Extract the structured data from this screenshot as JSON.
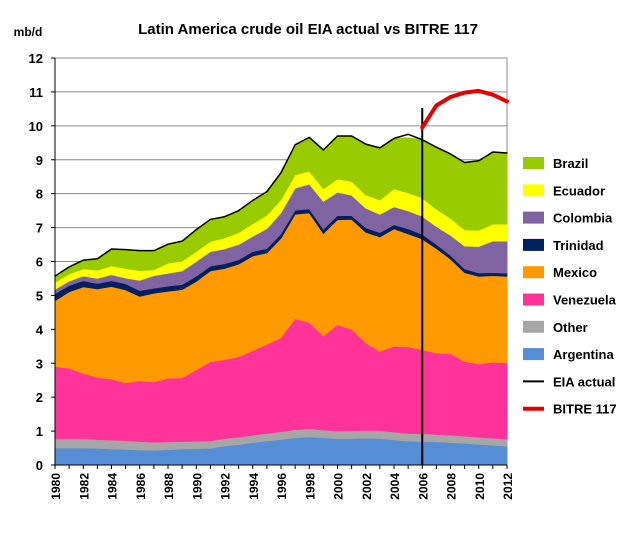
{
  "chart_data": {
    "type": "area",
    "title": "Latin America crude oil EIA actual vs BITRE 117",
    "ylabel": "mb/d",
    "xlabel": "",
    "ylim": [
      0,
      12
    ],
    "yticks": [
      0,
      1,
      2,
      3,
      4,
      5,
      6,
      7,
      8,
      9,
      10,
      11,
      12
    ],
    "xlim": [
      1980,
      2012
    ],
    "xticks": [
      1980,
      1982,
      1984,
      1986,
      1988,
      1990,
      1992,
      1994,
      1996,
      1998,
      2000,
      2002,
      2004,
      2006,
      2008,
      2010,
      2012
    ],
    "x": [
      1980,
      1981,
      1982,
      1983,
      1984,
      1985,
      1986,
      1987,
      1988,
      1989,
      1990,
      1991,
      1992,
      1993,
      1994,
      1995,
      1996,
      1997,
      1998,
      1999,
      2000,
      2001,
      2002,
      2003,
      2004,
      2005,
      2006,
      2007,
      2008,
      2009,
      2010,
      2011,
      2012
    ],
    "grid": true,
    "legend_position": "right",
    "stacked_series": [
      {
        "name": "Argentina",
        "color": "#558ED5",
        "values": [
          0.5,
          0.5,
          0.5,
          0.49,
          0.47,
          0.46,
          0.44,
          0.43,
          0.45,
          0.47,
          0.48,
          0.49,
          0.56,
          0.6,
          0.66,
          0.71,
          0.75,
          0.8,
          0.83,
          0.8,
          0.77,
          0.78,
          0.79,
          0.78,
          0.74,
          0.7,
          0.69,
          0.68,
          0.66,
          0.64,
          0.61,
          0.58,
          0.55
        ]
      },
      {
        "name": "Other",
        "color": "#A6A6A6",
        "values": [
          0.27,
          0.27,
          0.27,
          0.26,
          0.26,
          0.26,
          0.25,
          0.24,
          0.23,
          0.22,
          0.22,
          0.22,
          0.22,
          0.22,
          0.22,
          0.22,
          0.23,
          0.24,
          0.24,
          0.23,
          0.23,
          0.23,
          0.23,
          0.23,
          0.23,
          0.23,
          0.23,
          0.22,
          0.22,
          0.21,
          0.21,
          0.21,
          0.21
        ]
      },
      {
        "name": "Venezuela",
        "color": "#FF3399",
        "values": [
          2.13,
          2.08,
          1.93,
          1.83,
          1.8,
          1.7,
          1.79,
          1.78,
          1.87,
          1.88,
          2.1,
          2.33,
          2.32,
          2.37,
          2.49,
          2.62,
          2.77,
          3.27,
          3.13,
          2.77,
          3.13,
          2.99,
          2.58,
          2.34,
          2.53,
          2.55,
          2.48,
          2.4,
          2.4,
          2.2,
          2.16,
          2.24,
          2.25
        ]
      },
      {
        "name": "Mexico",
        "color": "#FF9900",
        "values": [
          1.94,
          2.25,
          2.55,
          2.61,
          2.73,
          2.74,
          2.49,
          2.61,
          2.57,
          2.6,
          2.61,
          2.68,
          2.69,
          2.73,
          2.79,
          2.7,
          2.93,
          3.08,
          3.23,
          3.02,
          3.1,
          3.24,
          3.26,
          3.37,
          3.46,
          3.33,
          3.26,
          3.08,
          2.79,
          2.62,
          2.58,
          2.55,
          2.55
        ]
      },
      {
        "name": "Trinidad",
        "color": "#002060",
        "values": [
          0.21,
          0.19,
          0.18,
          0.16,
          0.17,
          0.18,
          0.17,
          0.15,
          0.15,
          0.15,
          0.15,
          0.14,
          0.14,
          0.13,
          0.13,
          0.13,
          0.13,
          0.12,
          0.12,
          0.13,
          0.12,
          0.11,
          0.13,
          0.13,
          0.12,
          0.15,
          0.14,
          0.12,
          0.11,
          0.11,
          0.1,
          0.09,
          0.09
        ]
      },
      {
        "name": "Colombia",
        "color": "#8064A2",
        "values": [
          0.12,
          0.13,
          0.14,
          0.15,
          0.18,
          0.17,
          0.3,
          0.37,
          0.38,
          0.4,
          0.44,
          0.43,
          0.44,
          0.45,
          0.45,
          0.59,
          0.62,
          0.65,
          0.73,
          0.82,
          0.69,
          0.6,
          0.58,
          0.54,
          0.53,
          0.53,
          0.53,
          0.53,
          0.59,
          0.67,
          0.78,
          0.93,
          0.95
        ]
      },
      {
        "name": "Ecuador",
        "color": "#FFFF00",
        "values": [
          0.21,
          0.21,
          0.21,
          0.24,
          0.26,
          0.28,
          0.29,
          0.17,
          0.3,
          0.29,
          0.29,
          0.3,
          0.32,
          0.35,
          0.37,
          0.39,
          0.39,
          0.39,
          0.38,
          0.37,
          0.39,
          0.41,
          0.39,
          0.42,
          0.53,
          0.53,
          0.54,
          0.51,
          0.5,
          0.48,
          0.48,
          0.5,
          0.5
        ]
      },
      {
        "name": "Brazil",
        "color": "#99CC00",
        "values": [
          0.19,
          0.21,
          0.26,
          0.34,
          0.5,
          0.56,
          0.59,
          0.57,
          0.56,
          0.59,
          0.65,
          0.65,
          0.63,
          0.65,
          0.69,
          0.7,
          0.8,
          0.89,
          1.0,
          1.12,
          1.27,
          1.34,
          1.5,
          1.54,
          1.49,
          1.63,
          1.72,
          1.83,
          1.9,
          1.99,
          2.05,
          2.13,
          2.1
        ]
      }
    ],
    "line_series": [
      {
        "name": "EIA actual",
        "color": "#000000",
        "x": [
          1980,
          1981,
          1982,
          1983,
          1984,
          1985,
          1986,
          1987,
          1988,
          1989,
          1990,
          1991,
          1992,
          1993,
          1994,
          1995,
          1996,
          1997,
          1998,
          1999,
          2000,
          2001,
          2002,
          2003,
          2004,
          2005,
          2006,
          2007,
          2008,
          2009,
          2010,
          2011,
          2012
        ],
        "values": [
          5.57,
          5.84,
          6.04,
          6.08,
          6.37,
          6.35,
          6.32,
          6.32,
          6.51,
          6.6,
          6.94,
          7.24,
          7.32,
          7.5,
          7.8,
          8.06,
          8.62,
          9.44,
          9.66,
          9.29,
          9.7,
          9.7,
          9.46,
          9.35,
          9.63,
          9.75,
          9.59,
          9.37,
          9.17,
          8.92,
          8.97,
          9.23,
          9.2
        ]
      },
      {
        "name": "BITRE 117",
        "color": "#E60000",
        "x": [
          2006,
          2007,
          2008,
          2009,
          2010,
          2011,
          2012
        ],
        "values": [
          9.95,
          10.6,
          10.85,
          10.98,
          11.03,
          10.92,
          10.72
        ]
      }
    ],
    "annotations": [
      {
        "type": "vertical-line",
        "x": 2006,
        "color": "#000000"
      }
    ],
    "legend": [
      "Brazil",
      "Ecuador",
      "Colombia",
      "Trinidad",
      "Mexico",
      "Venezuela",
      "Other",
      "Argentina",
      "EIA actual",
      "BITRE 117"
    ]
  }
}
